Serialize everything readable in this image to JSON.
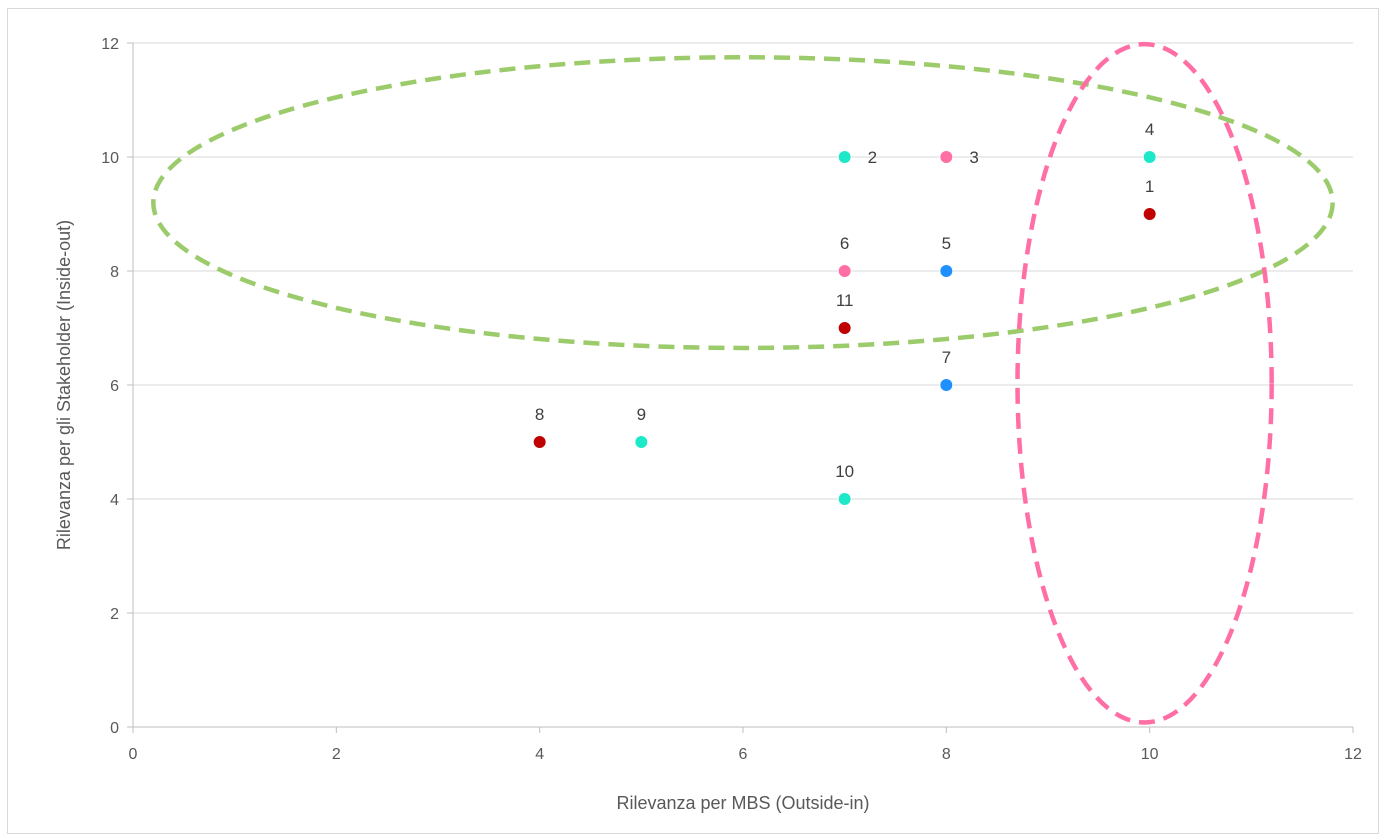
{
  "chart_data": {
    "type": "scatter",
    "title": "",
    "xlabel": "Rilevanza per MBS (Outside-in)",
    "ylabel": "Rilevanza per gli Stakeholder (Inside-out)",
    "xlim": [
      0,
      12
    ],
    "ylim": [
      0,
      12
    ],
    "x_ticks": [
      0,
      2,
      4,
      6,
      8,
      10,
      12
    ],
    "y_ticks": [
      0,
      2,
      4,
      6,
      8,
      10,
      12
    ],
    "grid": "horizontal",
    "points": [
      {
        "label": "1",
        "x": 10,
        "y": 9,
        "color": "#c00000",
        "label_pos": "above"
      },
      {
        "label": "2",
        "x": 7,
        "y": 10,
        "color": "#1de9c8",
        "label_pos": "right"
      },
      {
        "label": "3",
        "x": 8,
        "y": 10,
        "color": "#ff6fa5",
        "label_pos": "right"
      },
      {
        "label": "4",
        "x": 10,
        "y": 10,
        "color": "#1de9c8",
        "label_pos": "above"
      },
      {
        "label": "5",
        "x": 8,
        "y": 8,
        "color": "#1e90ff",
        "label_pos": "above"
      },
      {
        "label": "6",
        "x": 7,
        "y": 8,
        "color": "#ff6fa5",
        "label_pos": "above"
      },
      {
        "label": "7",
        "x": 8,
        "y": 6,
        "color": "#1e90ff",
        "label_pos": "above"
      },
      {
        "label": "8",
        "x": 4,
        "y": 5,
        "color": "#c00000",
        "label_pos": "above"
      },
      {
        "label": "9",
        "x": 5,
        "y": 5,
        "color": "#1de9c8",
        "label_pos": "above"
      },
      {
        "label": "10",
        "x": 7,
        "y": 4,
        "color": "#1de9c8",
        "label_pos": "above"
      },
      {
        "label": "11",
        "x": 7,
        "y": 7,
        "color": "#c00000",
        "label_pos": "above"
      }
    ],
    "annotations": [
      {
        "shape": "ellipse",
        "style": "dashed",
        "color": "#9bcb6b",
        "cx": 6,
        "cy": 9.2,
        "rx": 5.8,
        "ry": 2.55
      },
      {
        "shape": "ellipse",
        "style": "dashed",
        "color": "#ff6fa5",
        "cx": 9.95,
        "cy": 6.03,
        "rx": 1.25,
        "ry": 5.95
      }
    ]
  }
}
